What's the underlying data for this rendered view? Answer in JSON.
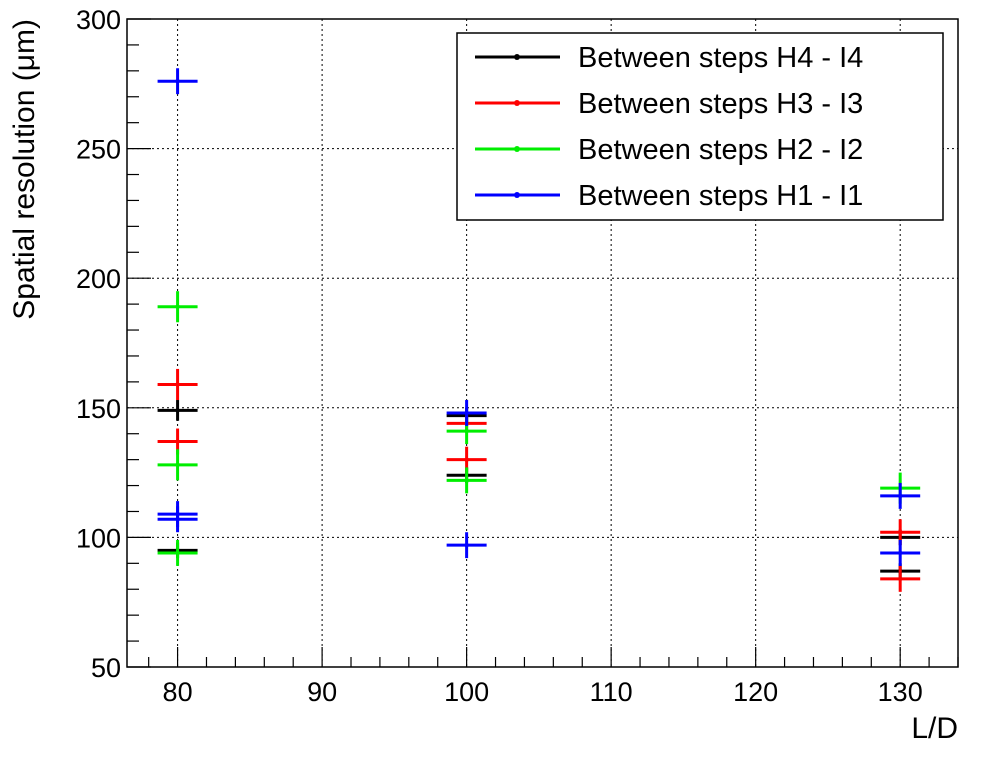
{
  "chart_data": {
    "type": "scatter",
    "xlabel": "L/D",
    "ylabel": "Spatial resolution (μm)",
    "xlim": [
      76.5,
      134
    ],
    "ylim": [
      50,
      300
    ],
    "x_ticks": [
      80,
      90,
      100,
      110,
      120,
      130
    ],
    "y_ticks": [
      50,
      100,
      150,
      200,
      250,
      300
    ],
    "grid": true,
    "legend_position": "top-right",
    "series": [
      {
        "name": "Between steps H4 - I4",
        "color": "#000000",
        "points": [
          {
            "x": 80,
            "y": 149,
            "yerr": 4
          },
          {
            "x": 80,
            "y": 95,
            "yerr": 3
          },
          {
            "x": 100,
            "y": 147,
            "yerr": 3
          },
          {
            "x": 100,
            "y": 124,
            "yerr": 3
          },
          {
            "x": 130,
            "y": 100,
            "yerr": 3
          },
          {
            "x": 130,
            "y": 87,
            "yerr": 3
          }
        ]
      },
      {
        "name": "Between steps H3 - I3",
        "color": "#ff0000",
        "points": [
          {
            "x": 80,
            "y": 159,
            "yerr": 6
          },
          {
            "x": 80,
            "y": 137,
            "yerr": 5
          },
          {
            "x": 100,
            "y": 144,
            "yerr": 3
          },
          {
            "x": 100,
            "y": 130,
            "yerr": 5
          },
          {
            "x": 130,
            "y": 102,
            "yerr": 5
          },
          {
            "x": 130,
            "y": 84,
            "yerr": 5
          }
        ]
      },
      {
        "name": "Between steps H2 - I2",
        "color": "#00ee00",
        "points": [
          {
            "x": 80,
            "y": 189,
            "yerr": 6
          },
          {
            "x": 80,
            "y": 128,
            "yerr": 6
          },
          {
            "x": 80,
            "y": 94,
            "yerr": 5
          },
          {
            "x": 100,
            "y": 141,
            "yerr": 5
          },
          {
            "x": 100,
            "y": 122,
            "yerr": 5
          },
          {
            "x": 130,
            "y": 119,
            "yerr": 6
          }
        ]
      },
      {
        "name": "Between steps H1 - I1",
        "color": "#0000ff",
        "points": [
          {
            "x": 80,
            "y": 276,
            "yerr": 5
          },
          {
            "x": 80,
            "y": 109,
            "yerr": 5
          },
          {
            "x": 80,
            "y": 107,
            "yerr": 5
          },
          {
            "x": 100,
            "y": 148,
            "yerr": 5
          },
          {
            "x": 100,
            "y": 97,
            "yerr": 5
          },
          {
            "x": 130,
            "y": 116,
            "yerr": 5
          },
          {
            "x": 130,
            "y": 94,
            "yerr": 5
          }
        ]
      }
    ]
  }
}
